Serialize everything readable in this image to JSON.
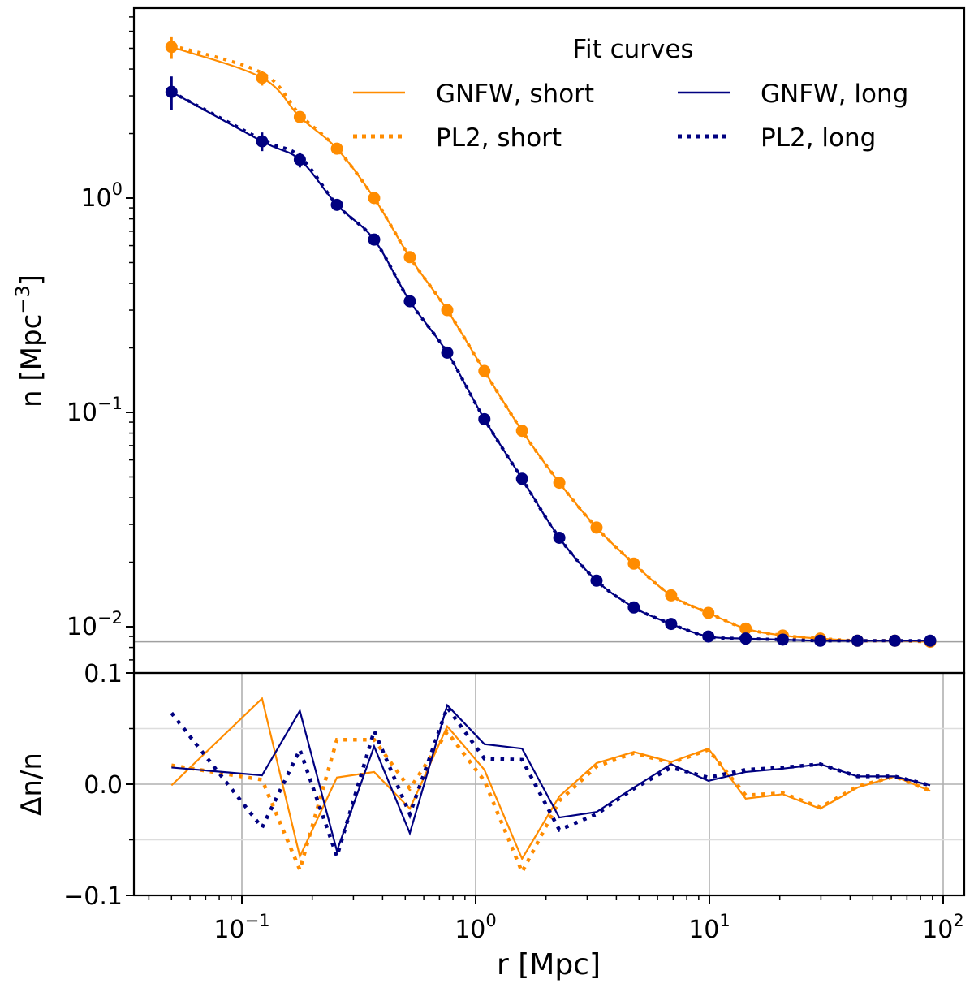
{
  "chart_data": [
    {
      "panel": "upper",
      "type": "scatter",
      "ylabel": "n [Mpc$^{-3}$]",
      "ylabel_text": "n [Mpc",
      "ylabel_sup": "−3",
      "ylabel_close": "]",
      "yscale": "log",
      "ylim": [
        0.0068,
        8.0
      ],
      "yticks": [
        {
          "value": 1.0,
          "base": "10",
          "exp": "0"
        },
        {
          "value": 0.1,
          "base": "10",
          "exp": "−1"
        },
        {
          "value": 0.01,
          "base": "10",
          "exp": "−2"
        }
      ],
      "hline": 0.0085,
      "legend": {
        "title": "Fit curves",
        "placement": "upper-right",
        "ncol": 2,
        "entries": [
          {
            "label": "GNFW, short",
            "series": "orange",
            "style": "solid"
          },
          {
            "label": "GNFW, long",
            "series": "navy",
            "style": "solid"
          },
          {
            "label": "PL2, short",
            "series": "orange",
            "style": "dotted"
          },
          {
            "label": "PL2, long",
            "series": "navy",
            "style": "dotted"
          }
        ]
      },
      "series": [
        {
          "name": "short (data)",
          "color": "#ff8c00",
          "values": [
            5.07,
            3.64,
            2.39,
            1.7,
            1.0,
            0.53,
            0.3,
            0.156,
            0.082,
            0.047,
            0.029,
            0.0197,
            0.014,
            0.0116,
            0.0098,
            0.0091,
            0.0088,
            0.0086,
            0.0086,
            0.0085
          ],
          "yerr_rel": [
            0.12,
            0.08,
            0.05,
            0.04,
            0.03,
            0.02,
            0.02,
            0.02,
            0.02,
            0.02,
            0.02,
            0.02,
            0.02,
            0.02,
            0.02,
            0.02,
            0.02,
            0.02,
            0.02,
            0.02
          ]
        },
        {
          "name": "long (data)",
          "color": "#000080",
          "values": [
            3.13,
            1.84,
            1.51,
            0.93,
            0.64,
            0.33,
            0.19,
            0.093,
            0.049,
            0.026,
            0.0164,
            0.0123,
            0.0103,
            0.009,
            0.0088,
            0.0087,
            0.0086,
            0.0086,
            0.0086,
            0.0086
          ],
          "yerr_rel": [
            0.18,
            0.1,
            0.08,
            0.06,
            0.04,
            0.03,
            0.02,
            0.02,
            0.02,
            0.02,
            0.02,
            0.02,
            0.02,
            0.02,
            0.02,
            0.02,
            0.02,
            0.02,
            0.02,
            0.02
          ]
        }
      ]
    },
    {
      "panel": "lower",
      "type": "line",
      "ylabel": "Δn/n",
      "ylim": [
        -0.1,
        0.1
      ],
      "yticks": [
        {
          "value": 0.1,
          "label": "0.1"
        },
        {
          "value": 0.0,
          "label": "0.0"
        },
        {
          "value": -0.1,
          "label": "−0.1"
        }
      ],
      "yminor": [
        0.05,
        -0.05
      ],
      "grid": true,
      "series": [
        {
          "name": "GNFW, short",
          "color": "#ff8c00",
          "style": "solid",
          "values": [
            -0.001,
            0.077,
            -0.065,
            0.006,
            0.011,
            -0.022,
            0.052,
            0.013,
            -0.067,
            -0.011,
            0.019,
            0.029,
            0.02,
            0.032,
            -0.013,
            -0.009,
            -0.022,
            -0.003,
            0.007,
            -0.006
          ]
        },
        {
          "name": "PL2, short",
          "color": "#ff8c00",
          "style": "dotted",
          "values": [
            0.017,
            0.004,
            -0.077,
            0.04,
            0.04,
            -0.004,
            0.047,
            0.003,
            -0.079,
            -0.015,
            0.016,
            0.028,
            0.019,
            0.031,
            -0.01,
            -0.008,
            -0.021,
            -0.002,
            0.007,
            -0.006
          ]
        },
        {
          "name": "GNFW, long",
          "color": "#000080",
          "style": "solid",
          "values": [
            0.015,
            0.008,
            0.066,
            -0.06,
            0.034,
            -0.044,
            0.071,
            0.036,
            0.032,
            -0.03,
            -0.025,
            -0.003,
            0.018,
            0.003,
            0.011,
            0.014,
            0.018,
            0.007,
            0.007,
            -0.001
          ]
        },
        {
          "name": "PL2, long",
          "color": "#000080",
          "style": "dotted",
          "values": [
            0.064,
            -0.039,
            0.031,
            -0.065,
            0.048,
            -0.027,
            0.069,
            0.023,
            0.022,
            -0.041,
            -0.027,
            -0.004,
            0.015,
            0.006,
            0.013,
            0.015,
            0.018,
            0.007,
            0.007,
            -0.001
          ]
        }
      ]
    }
  ],
  "shared_x": {
    "xlabel": "r [Mpc]",
    "xscale": "log",
    "xlim": [
      0.035,
      120
    ],
    "x": [
      0.05,
      0.122,
      0.177,
      0.255,
      0.368,
      0.523,
      0.756,
      1.09,
      1.58,
      2.28,
      3.29,
      4.75,
      6.86,
      9.9,
      14.3,
      20.6,
      29.8,
      43.0,
      62.1,
      88.0
    ],
    "xticks": [
      {
        "value": 0.1,
        "base": "10",
        "exp": "−1"
      },
      {
        "value": 1,
        "base": "10",
        "exp": "0"
      },
      {
        "value": 10,
        "base": "10",
        "exp": "1"
      },
      {
        "value": 100,
        "base": "10",
        "exp": "2"
      }
    ]
  }
}
